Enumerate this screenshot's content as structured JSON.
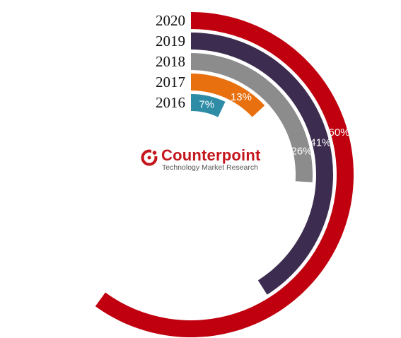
{
  "chart_data": {
    "type": "radial-bar",
    "full_scale_percent": 100,
    "series": [
      {
        "year": "2016",
        "value": 7,
        "label": "7%",
        "color": "#2e8ca6"
      },
      {
        "year": "2017",
        "value": 13,
        "label": "13%",
        "color": "#e8700e"
      },
      {
        "year": "2018",
        "value": 26,
        "label": "26%",
        "color": "#8c8c8c"
      },
      {
        "year": "2019",
        "value": 41,
        "label": "41%",
        "color": "#3c2c50"
      },
      {
        "year": "2020",
        "value": 60,
        "label": "60%",
        "color": "#c0000e"
      }
    ]
  },
  "logo": {
    "name": "Counterpoint",
    "tagline": "Technology Market Research",
    "color": "#c4161c"
  }
}
